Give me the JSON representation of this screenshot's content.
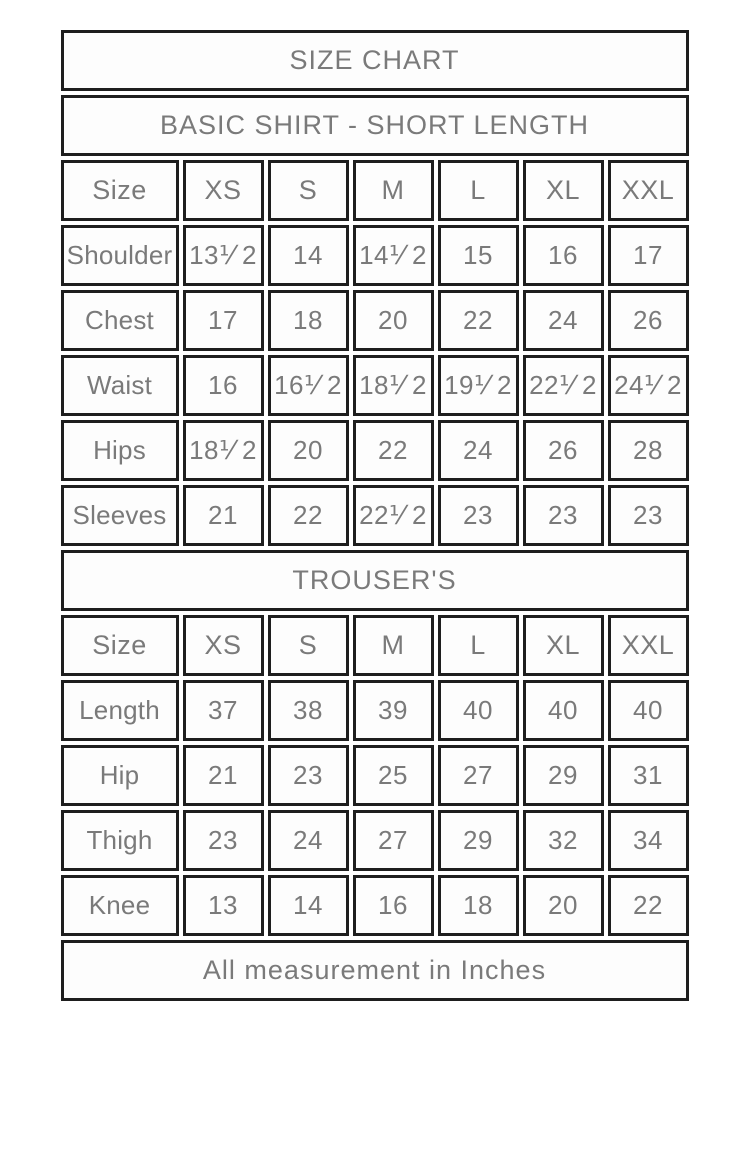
{
  "colors": {
    "page_background": "#ffffff",
    "cell_background": "#fdfdfd",
    "border": "#1e1e1e",
    "text": "#7a7a7a"
  },
  "size_chart": {
    "title": "SIZE CHART",
    "sections": [
      {
        "title": "BASIC SHIRT - SHORT LENGTH",
        "columns": [
          "Size",
          "XS",
          "S",
          "M",
          "L",
          "XL",
          "XXL"
        ],
        "rows": [
          {
            "label": "Shoulder",
            "values": [
              "13⅟ 2",
              "14",
              "14⅟ 2",
              "15",
              "16",
              "17"
            ]
          },
          {
            "label": "Chest",
            "values": [
              "17",
              "18",
              "20",
              "22",
              "24",
              "26"
            ]
          },
          {
            "label": "Waist",
            "values": [
              "16",
              "16⅟ 2",
              "18⅟ 2",
              "19⅟ 2",
              "22⅟ 2",
              "24⅟ 2"
            ]
          },
          {
            "label": "Hips",
            "values": [
              "18⅟ 2",
              "20",
              "22",
              "24",
              "26",
              "28"
            ]
          },
          {
            "label": "Sleeves",
            "values": [
              "21",
              "22",
              "22⅟ 2",
              "23",
              "23",
              "23"
            ]
          }
        ]
      },
      {
        "title": "TROUSER'S",
        "columns": [
          "Size",
          "XS",
          "S",
          "M",
          "L",
          "XL",
          "XXL"
        ],
        "rows": [
          {
            "label": "Length",
            "values": [
              "37",
              "38",
              "39",
              "40",
              "40",
              "40"
            ]
          },
          {
            "label": "Hip",
            "values": [
              "21",
              "23",
              "25",
              "27",
              "29",
              "31"
            ]
          },
          {
            "label": "Thigh",
            "values": [
              "23",
              "24",
              "27",
              "29",
              "32",
              "34"
            ]
          },
          {
            "label": "Knee",
            "values": [
              "13",
              "14",
              "16",
              "18",
              "20",
              "22"
            ]
          }
        ]
      }
    ],
    "footer": "All measurement in Inches"
  }
}
